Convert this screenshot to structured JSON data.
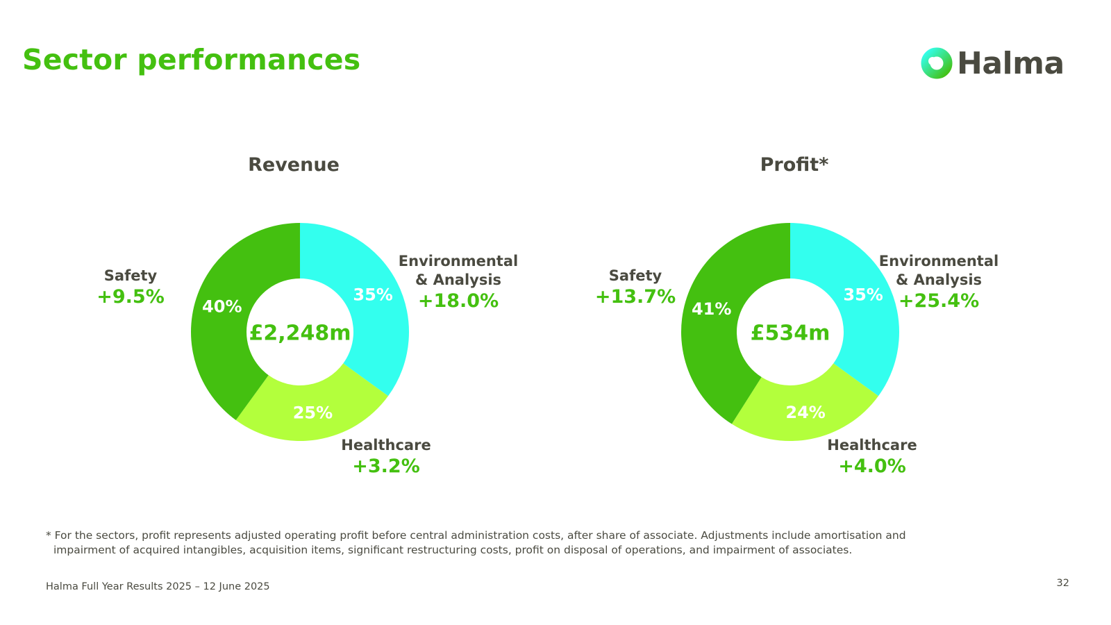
{
  "title": "Sector performances",
  "brand": {
    "name": "Halma",
    "colors": {
      "green": "#44c010",
      "dark": "#4a4a40"
    }
  },
  "chart_data": [
    {
      "type": "pie",
      "title": "Revenue",
      "center_label": "£2,248m",
      "categories": [
        "Environmental & Analysis",
        "Healthcare",
        "Safety"
      ],
      "values": [
        35,
        25,
        40
      ],
      "value_labels": [
        "35%",
        "25%",
        "40%"
      ],
      "colors": [
        "#33ffee",
        "#b3ff3c",
        "#44c010"
      ],
      "sectors": {
        "safety": {
          "name": "Safety",
          "growth": "+9.5%"
        },
        "environmental": {
          "name_line1": "Environmental",
          "name_line2": "& Analysis",
          "growth": "+18.0%"
        },
        "healthcare": {
          "name": "Healthcare",
          "growth": "+3.2%"
        }
      }
    },
    {
      "type": "pie",
      "title": "Profit*",
      "center_label": "£534m",
      "categories": [
        "Environmental & Analysis",
        "Healthcare",
        "Safety"
      ],
      "values": [
        35,
        24,
        41
      ],
      "value_labels": [
        "35%",
        "24%",
        "41%"
      ],
      "colors": [
        "#33ffee",
        "#b3ff3c",
        "#44c010"
      ],
      "sectors": {
        "safety": {
          "name": "Safety",
          "growth": "+13.7%"
        },
        "environmental": {
          "name_line1": "Environmental",
          "name_line2": "& Analysis",
          "growth": "+25.4%"
        },
        "healthcare": {
          "name": "Healthcare",
          "growth": "+4.0%"
        }
      }
    }
  ],
  "footnote": {
    "line1": "* For the sectors, profit represents adjusted operating profit before central administration costs, after share of associate. Adjustments include amortisation and",
    "line2": "impairment of acquired intangibles, acquisition items, significant restructuring costs, profit on disposal of operations, and impairment of associates."
  },
  "footer": {
    "text": "Halma Full Year Results 2025 – 12 June 2025",
    "page_number": "32"
  }
}
